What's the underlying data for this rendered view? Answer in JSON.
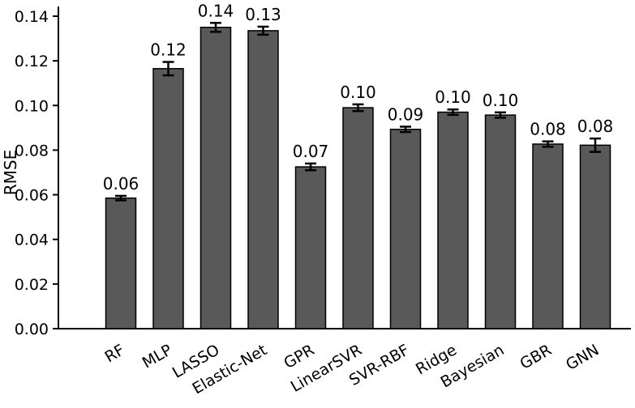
{
  "chart_data": {
    "type": "bar",
    "categories": [
      "RF",
      "MLP",
      "LASSO",
      "Elastic-Net",
      "GPR",
      "LinearSVR",
      "SVR-RBF",
      "Ridge",
      "Bayesian",
      "GBR",
      "GNN"
    ],
    "series": [
      {
        "values": [
          0.0585,
          0.1165,
          0.135,
          0.1335,
          0.0725,
          0.099,
          0.0893,
          0.097,
          0.0957,
          0.0827,
          0.0822
        ],
        "errors": [
          0.001,
          0.003,
          0.002,
          0.0018,
          0.0015,
          0.0015,
          0.0012,
          0.0012,
          0.0012,
          0.0012,
          0.003
        ],
        "data_labels": [
          "0.06",
          "0.12",
          "0.14",
          "0.13",
          "0.07",
          "0.10",
          "0.09",
          "0.10",
          "0.10",
          "0.08",
          "0.08"
        ]
      }
    ],
    "xlabel": "",
    "ylabel": "RMSE",
    "ylim": [
      0,
      0.14
    ],
    "yticks": [
      "0.00",
      "0.02",
      "0.04",
      "0.06",
      "0.08",
      "0.10",
      "0.12",
      "0.14"
    ],
    "grid": false,
    "x_tick_rotation_deg": -30,
    "colors": {
      "bar": "#595959",
      "bar_edge": "#000000",
      "error_bar": "#000000"
    }
  }
}
